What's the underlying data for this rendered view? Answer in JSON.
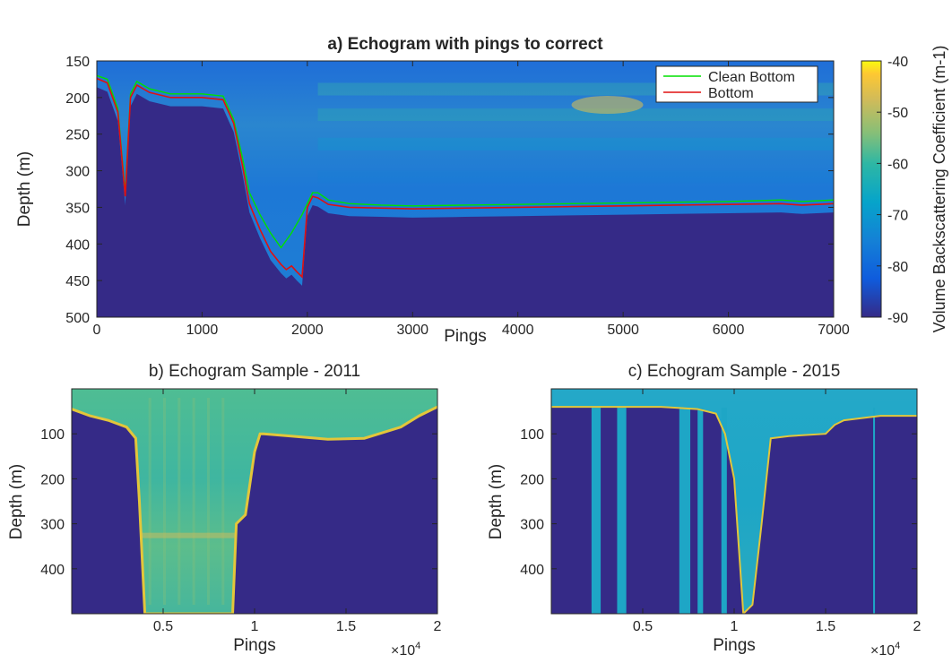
{
  "chart_data": [
    {
      "id": "a",
      "type": "heatmap",
      "title": "a) Echogram with pings to correct",
      "xlabel": "Pings",
      "ylabel": "Depth (m)",
      "xlim": [
        0,
        7000
      ],
      "ylim": [
        150,
        500
      ],
      "y_reversed": true,
      "xticks": [
        0,
        1000,
        2000,
        3000,
        4000,
        5000,
        6000,
        7000
      ],
      "yticks": [
        150,
        200,
        250,
        300,
        350,
        400,
        450,
        500
      ],
      "legend": {
        "placement": "top-right",
        "entries": [
          "Clean Bottom",
          "Bottom"
        ]
      },
      "series": [
        {
          "name": "Clean Bottom",
          "color": "#00e000",
          "x": [
            0,
            100,
            200,
            270,
            320,
            380,
            500,
            700,
            1000,
            1200,
            1300,
            1380,
            1450,
            1550,
            1650,
            1750,
            1850,
            1950,
            2000,
            2050,
            2100,
            2200,
            2400,
            2700,
            3000,
            3500,
            4000,
            4500,
            5000,
            5500,
            6000,
            6500,
            6700,
            7000
          ],
          "y": [
            170,
            175,
            215,
            330,
            195,
            178,
            188,
            195,
            195,
            198,
            230,
            280,
            330,
            360,
            385,
            405,
            385,
            360,
            345,
            330,
            330,
            340,
            345,
            347,
            348,
            347,
            346,
            345,
            344,
            343,
            342,
            340,
            342,
            340
          ]
        },
        {
          "name": "Bottom",
          "color": "#e01010",
          "x": [
            0,
            100,
            200,
            270,
            320,
            380,
            500,
            700,
            1000,
            1200,
            1300,
            1380,
            1450,
            1550,
            1650,
            1750,
            1800,
            1850,
            1900,
            1950,
            2000,
            2050,
            2100,
            2200,
            2400,
            2700,
            3000,
            3500,
            4000,
            4500,
            5000,
            5500,
            6000,
            6500,
            6700,
            7000
          ],
          "y": [
            174,
            180,
            220,
            335,
            200,
            183,
            193,
            200,
            200,
            203,
            235,
            290,
            345,
            380,
            410,
            428,
            435,
            430,
            438,
            445,
            350,
            335,
            337,
            346,
            350,
            351,
            352,
            351,
            350,
            349,
            348,
            347,
            346,
            345,
            347,
            345
          ]
        }
      ],
      "colorbar": {
        "label": "Volume Backscattering Coefficient (m-1)",
        "range": [
          -90,
          -40
        ],
        "ticks": [
          -40,
          -50,
          -60,
          -70,
          -80,
          -90
        ],
        "colormap": "parula"
      }
    },
    {
      "id": "b",
      "type": "heatmap",
      "title": "b) Echogram Sample - 2011",
      "xlabel": "Pings",
      "ylabel": "Depth (m)",
      "x_multiplier_label": "×10",
      "x_multiplier_exp": "4",
      "xlim": [
        0,
        2
      ],
      "ylim": [
        0,
        500
      ],
      "y_reversed": true,
      "xticks": [
        0.5,
        1,
        1.5,
        2
      ],
      "xtick_labels": [
        "0.5",
        "1",
        "1.5",
        "2"
      ],
      "yticks": [
        100,
        200,
        300,
        400
      ],
      "bottom_profile": {
        "x": [
          0,
          0.1,
          0.2,
          0.3,
          0.35,
          0.37,
          0.4,
          0.6,
          0.7,
          0.8,
          0.88,
          0.9,
          0.95,
          1.0,
          1.03,
          1.05,
          1.2,
          1.4,
          1.6,
          1.8,
          1.9,
          2.0
        ],
        "depth": [
          45,
          60,
          70,
          85,
          110,
          250,
          500,
          500,
          500,
          500,
          500,
          300,
          280,
          140,
          100,
          100,
          105,
          112,
          110,
          85,
          60,
          40
        ]
      }
    },
    {
      "id": "c",
      "type": "heatmap",
      "title": "c) Echogram Sample - 2015",
      "xlabel": "Pings",
      "ylabel": "Depth (m)",
      "x_multiplier_label": "×10",
      "x_multiplier_exp": "4",
      "xlim": [
        0,
        2
      ],
      "ylim": [
        0,
        500
      ],
      "y_reversed": true,
      "xticks": [
        0.5,
        1,
        1.5,
        2
      ],
      "xtick_labels": [
        "0.5",
        "1",
        "1.5",
        "2"
      ],
      "yticks": [
        100,
        200,
        300,
        400
      ],
      "bottom_profile": {
        "x": [
          0,
          0.3,
          0.6,
          0.8,
          0.9,
          0.95,
          1.0,
          1.05,
          1.1,
          1.15,
          1.2,
          1.3,
          1.5,
          1.55,
          1.6,
          1.8,
          2.0
        ],
        "depth": [
          40,
          40,
          40,
          45,
          55,
          100,
          200,
          500,
          480,
          300,
          110,
          105,
          100,
          80,
          70,
          60,
          60
        ]
      },
      "gap_columns": [
        [
          0.22,
          0.27
        ],
        [
          0.36,
          0.41
        ],
        [
          0.7,
          0.76
        ],
        [
          0.8,
          0.83
        ],
        [
          0.93,
          0.96
        ],
        [
          1.76,
          1.77
        ]
      ]
    }
  ]
}
